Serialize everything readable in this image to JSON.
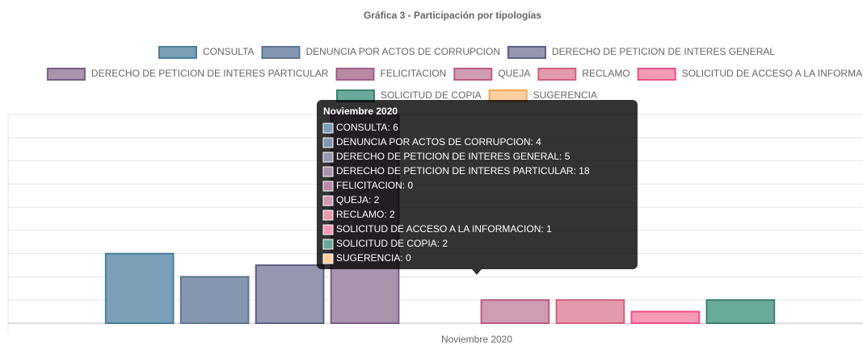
{
  "chart_data": {
    "type": "bar",
    "title": "Gráfica 3 - Participación por tipologías",
    "categories": [
      "Noviembre 2020"
    ],
    "ylim": [
      0,
      18
    ],
    "yticks": [
      0,
      2,
      4,
      6,
      8,
      10,
      12,
      14,
      16,
      18
    ],
    "grid": true,
    "series": [
      {
        "name": "CONSULTA",
        "color": "#7a9fb6",
        "border": "#4a7d9a",
        "values": [
          6
        ]
      },
      {
        "name": "DENUNCIA POR ACTOS DE CORRUPCION",
        "color": "#8497b0",
        "border": "#5e7592",
        "values": [
          4
        ]
      },
      {
        "name": "DERECHO DE PETICION DE INTERES GENERAL",
        "color": "#9597b0",
        "border": "#5d5f84",
        "values": [
          5
        ]
      },
      {
        "name": "DERECHO DE PETICION DE INTERES PARTICULAR",
        "color": "#a994ae",
        "border": "#7b5d84",
        "values": [
          18
        ]
      },
      {
        "name": "FELICITACION",
        "color": "#b88aa5",
        "border": "#a0608a",
        "values": [
          0
        ]
      },
      {
        "name": "QUEJA",
        "color": "#d09cb2",
        "border": "#b85c85",
        "values": [
          2
        ]
      },
      {
        "name": "RECLAMO",
        "color": "#e49aad",
        "border": "#d3607f",
        "values": [
          2
        ]
      },
      {
        "name": "SOLICITUD DE ACCESO A LA INFORMACION",
        "color": "#f79ab8",
        "border": "#f0508a",
        "values": [
          1
        ]
      },
      {
        "name": "SOLICITUD DE COPIA",
        "color": "#6aaa9a",
        "border": "#3a8070",
        "values": [
          2
        ]
      },
      {
        "name": "SUGERENCIA",
        "color": "#fcd0a0",
        "border": "#f5a855",
        "values": [
          0
        ]
      }
    ]
  }
}
